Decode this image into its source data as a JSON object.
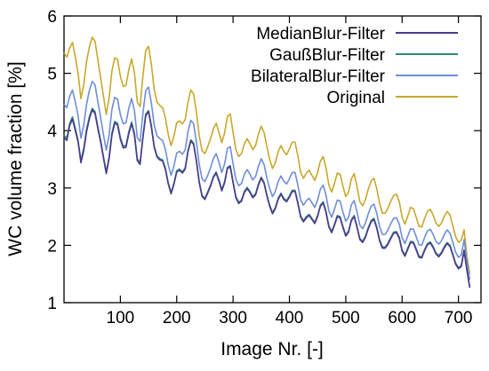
{
  "chart_data": {
    "type": "line",
    "title": "",
    "xlabel": "Image Nr. [-]",
    "ylabel": "WC volume fraction [%]",
    "xlim": [
      0,
      740
    ],
    "ylim": [
      1,
      6
    ],
    "xticks": [
      100,
      200,
      300,
      400,
      500,
      600,
      700
    ],
    "yticks": [
      1,
      2,
      3,
      4,
      5,
      6
    ],
    "grid": false,
    "legend_position": "top-right",
    "x_sampling": {
      "start": 0,
      "step": 5,
      "count": 145
    },
    "series": [
      {
        "name": "MedianBlur-Filter",
        "color": "#4d3a8c",
        "values": [
          3.88,
          3.83,
          4.09,
          4.2,
          4.0,
          3.8,
          3.44,
          3.65,
          3.98,
          4.21,
          4.36,
          4.3,
          4.04,
          3.8,
          3.52,
          3.25,
          3.51,
          3.92,
          4.13,
          4.1,
          3.85,
          3.7,
          3.71,
          3.95,
          4.12,
          3.92,
          3.48,
          3.41,
          3.87,
          4.26,
          4.33,
          4.06,
          3.71,
          3.54,
          3.49,
          3.47,
          3.32,
          3.07,
          2.9,
          3.06,
          3.28,
          3.31,
          3.26,
          3.33,
          3.63,
          3.82,
          3.76,
          3.46,
          3.09,
          2.85,
          2.8,
          2.91,
          3.03,
          3.18,
          3.26,
          3.12,
          2.95,
          3.09,
          3.34,
          3.37,
          3.09,
          2.83,
          2.73,
          2.77,
          2.92,
          2.99,
          2.92,
          2.83,
          2.88,
          3.05,
          3.17,
          3.08,
          2.86,
          2.68,
          2.55,
          2.64,
          2.8,
          2.89,
          2.8,
          2.76,
          2.84,
          2.94,
          2.94,
          2.73,
          2.49,
          2.41,
          2.48,
          2.52,
          2.45,
          2.38,
          2.5,
          2.68,
          2.74,
          2.57,
          2.32,
          2.22,
          2.35,
          2.5,
          2.48,
          2.31,
          2.16,
          2.23,
          2.43,
          2.5,
          2.31,
          2.1,
          2.05,
          2.14,
          2.29,
          2.41,
          2.45,
          2.3,
          2.08,
          1.95,
          1.95,
          2.02,
          2.12,
          2.21,
          2.22,
          2.12,
          1.9,
          1.81,
          1.93,
          2.05,
          2.04,
          1.92,
          1.79,
          1.78,
          1.91,
          2.01,
          2.04,
          1.96,
          1.85,
          1.8,
          1.86,
          1.96,
          2.03,
          1.98,
          1.83,
          1.67,
          1.59,
          1.63,
          1.9,
          1.56,
          1.26
        ]
      },
      {
        "name": "GaußBlur-Filter",
        "color": "#2e8a7a",
        "values": [
          3.92,
          3.87,
          4.12,
          4.24,
          4.04,
          3.83,
          3.48,
          3.69,
          4.02,
          4.24,
          4.39,
          4.33,
          4.07,
          3.83,
          3.55,
          3.28,
          3.54,
          3.96,
          4.16,
          4.13,
          3.88,
          3.73,
          3.74,
          3.98,
          4.15,
          3.95,
          3.51,
          3.44,
          3.9,
          4.29,
          4.35,
          4.09,
          3.73,
          3.56,
          3.51,
          3.49,
          3.34,
          3.09,
          2.92,
          3.08,
          3.3,
          3.33,
          3.28,
          3.35,
          3.65,
          3.84,
          3.78,
          3.48,
          3.11,
          2.87,
          2.82,
          2.93,
          3.05,
          3.2,
          3.28,
          3.14,
          2.97,
          3.11,
          3.36,
          3.39,
          3.11,
          2.85,
          2.75,
          2.79,
          2.94,
          3.01,
          2.94,
          2.85,
          2.9,
          3.07,
          3.19,
          3.1,
          2.88,
          2.7,
          2.57,
          2.66,
          2.82,
          2.91,
          2.82,
          2.78,
          2.86,
          2.96,
          2.96,
          2.75,
          2.51,
          2.43,
          2.5,
          2.54,
          2.47,
          2.4,
          2.52,
          2.7,
          2.76,
          2.59,
          2.34,
          2.24,
          2.37,
          2.52,
          2.5,
          2.33,
          2.18,
          2.25,
          2.45,
          2.52,
          2.33,
          2.12,
          2.07,
          2.16,
          2.31,
          2.43,
          2.47,
          2.32,
          2.1,
          1.97,
          1.97,
          2.04,
          2.14,
          2.23,
          2.24,
          2.14,
          1.92,
          1.83,
          1.95,
          2.07,
          2.06,
          1.94,
          1.81,
          1.8,
          1.93,
          2.03,
          2.06,
          1.98,
          1.87,
          1.82,
          1.88,
          1.98,
          2.05,
          2.0,
          1.85,
          1.69,
          1.61,
          1.65,
          1.92,
          1.58,
          1.28
        ]
      },
      {
        "name": "BilateralBlur-Filter",
        "color": "#6f8ed8",
        "values": [
          4.46,
          4.4,
          4.6,
          4.71,
          4.5,
          4.26,
          3.87,
          4.1,
          4.46,
          4.7,
          4.86,
          4.8,
          4.51,
          4.23,
          3.93,
          3.66,
          3.93,
          4.37,
          4.58,
          4.55,
          4.28,
          4.12,
          4.14,
          4.39,
          4.56,
          4.35,
          3.88,
          3.81,
          4.3,
          4.7,
          4.76,
          4.48,
          4.1,
          3.91,
          3.86,
          3.83,
          3.67,
          3.4,
          3.22,
          3.38,
          3.61,
          3.64,
          3.59,
          3.66,
          3.98,
          4.18,
          4.12,
          3.8,
          3.41,
          3.16,
          3.11,
          3.22,
          3.35,
          3.51,
          3.6,
          3.45,
          3.27,
          3.42,
          3.69,
          3.72,
          3.42,
          3.15,
          3.04,
          3.08,
          3.24,
          3.32,
          3.24,
          3.14,
          3.2,
          3.38,
          3.51,
          3.41,
          3.18,
          2.99,
          2.85,
          2.94,
          3.11,
          3.21,
          3.12,
          3.07,
          3.16,
          3.27,
          3.27,
          3.05,
          2.79,
          2.7,
          2.78,
          2.82,
          2.74,
          2.66,
          2.79,
          2.98,
          3.05,
          2.87,
          2.6,
          2.49,
          2.63,
          2.79,
          2.77,
          2.58,
          2.42,
          2.49,
          2.71,
          2.78,
          2.58,
          2.35,
          2.29,
          2.39,
          2.55,
          2.68,
          2.72,
          2.56,
          2.33,
          2.19,
          2.19,
          2.27,
          2.38,
          2.47,
          2.48,
          2.37,
          2.13,
          2.03,
          2.16,
          2.29,
          2.28,
          2.15,
          2.01,
          2.0,
          2.14,
          2.25,
          2.28,
          2.19,
          2.07,
          2.02,
          2.08,
          2.19,
          2.27,
          2.21,
          2.05,
          1.88,
          1.79,
          1.83,
          2.1,
          1.73,
          1.4
        ]
      },
      {
        "name": "Original",
        "color": "#c8a82c",
        "values": [
          5.36,
          5.28,
          5.44,
          5.54,
          5.28,
          5.0,
          4.56,
          4.8,
          5.2,
          5.46,
          5.63,
          5.56,
          5.24,
          4.92,
          4.6,
          4.28,
          4.57,
          5.04,
          5.27,
          5.24,
          4.95,
          4.77,
          4.79,
          5.06,
          5.25,
          5.01,
          4.5,
          4.42,
          4.95,
          5.4,
          5.47,
          5.16,
          4.72,
          4.5,
          4.44,
          4.4,
          4.22,
          3.93,
          3.74,
          3.9,
          4.14,
          4.17,
          4.12,
          4.19,
          4.5,
          4.71,
          4.64,
          4.32,
          3.91,
          3.65,
          3.6,
          3.72,
          3.86,
          4.03,
          4.13,
          3.97,
          3.79,
          3.96,
          4.25,
          4.29,
          3.97,
          3.67,
          3.55,
          3.6,
          3.77,
          3.86,
          3.77,
          3.67,
          3.74,
          3.94,
          4.08,
          3.97,
          3.72,
          3.5,
          3.34,
          3.44,
          3.63,
          3.74,
          3.64,
          3.58,
          3.68,
          3.8,
          3.8,
          3.56,
          3.27,
          3.17,
          3.26,
          3.31,
          3.22,
          3.13,
          3.27,
          3.47,
          3.55,
          3.35,
          3.05,
          2.93,
          3.08,
          3.26,
          3.24,
          3.03,
          2.85,
          2.93,
          3.16,
          3.25,
          3.02,
          2.76,
          2.69,
          2.8,
          2.98,
          3.12,
          3.17,
          2.99,
          2.73,
          2.56,
          2.56,
          2.65,
          2.77,
          2.87,
          2.89,
          2.76,
          2.49,
          2.37,
          2.51,
          2.66,
          2.64,
          2.49,
          2.33,
          2.32,
          2.47,
          2.59,
          2.63,
          2.53,
          2.39,
          2.33,
          2.39,
          2.51,
          2.59,
          2.53,
          2.34,
          2.15,
          2.05,
          2.09,
          2.27,
          1.81,
          1.5
        ]
      }
    ]
  }
}
